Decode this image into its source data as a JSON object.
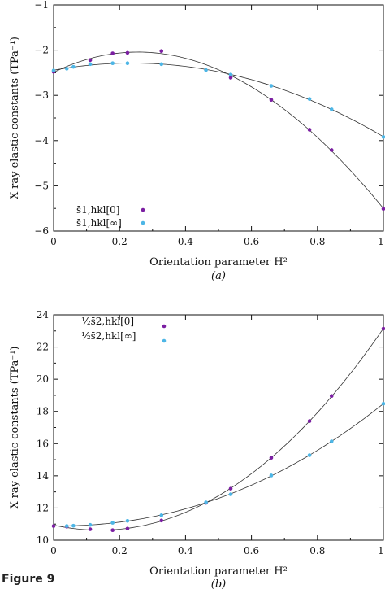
{
  "figure_label": "Figure 9",
  "chart_data": [
    {
      "type": "scatter",
      "caption": "(a)",
      "xlabel": "Orientation parameter H²",
      "ylabel": "X-ray elastic constants (TPa⁻¹)",
      "xlim": [
        0,
        1
      ],
      "ylim": [
        -6,
        -1
      ],
      "xticks": [
        "0",
        "0.2",
        "0.4",
        "0.6",
        "0.8",
        "1"
      ],
      "yticks": [
        "−6",
        "−5",
        "−4",
        "−3",
        "−2",
        "−1"
      ],
      "grid": false,
      "legend_position": "bottom-left",
      "series": [
        {
          "name": "s̄1,hkl[0]",
          "color": "#7b1fa2",
          "x": [
            0,
            0.111,
            0.179,
            0.224,
            0.327,
            0.537,
            0.66,
            0.776,
            0.843,
            1.0
          ],
          "y": [
            -2.48,
            -2.22,
            -2.07,
            -2.06,
            -2.02,
            -2.61,
            -3.1,
            -3.76,
            -4.21,
            -5.51
          ]
        },
        {
          "name": "s̄1,hkl[∞]",
          "color": "#4db6e6",
          "x": [
            0,
            0.04,
            0.06,
            0.111,
            0.179,
            0.224,
            0.327,
            0.462,
            0.537,
            0.66,
            0.776,
            0.843,
            1.0
          ],
          "y": [
            -2.45,
            -2.41,
            -2.37,
            -2.31,
            -2.29,
            -2.29,
            -2.31,
            -2.44,
            -2.54,
            -2.79,
            -3.08,
            -3.31,
            -3.92
          ]
        }
      ]
    },
    {
      "type": "scatter",
      "caption": "(b)",
      "xlabel": "Orientation parameter H²",
      "ylabel": "X-ray elastic constants (TPa⁻¹)",
      "xlim": [
        0,
        1
      ],
      "ylim": [
        10,
        24
      ],
      "xticks": [
        "0",
        "0.2",
        "0.4",
        "0.6",
        "0.8",
        "1"
      ],
      "yticks": [
        "10",
        "12",
        "14",
        "16",
        "18",
        "20",
        "22",
        "24"
      ],
      "grid": false,
      "legend_position": "top-left",
      "series": [
        {
          "name": "½s̄2,hkl[0]",
          "color": "#7b1fa2",
          "x": [
            0,
            0.04,
            0.111,
            0.179,
            0.224,
            0.327,
            0.462,
            0.537,
            0.66,
            0.776,
            0.843,
            1.0
          ],
          "y": [
            10.88,
            10.84,
            10.68,
            10.62,
            10.72,
            11.22,
            12.32,
            13.2,
            15.12,
            17.4,
            18.96,
            23.14
          ]
        },
        {
          "name": "½s̄2,hkl[∞]",
          "color": "#4db6e6",
          "x": [
            0.04,
            0.06,
            0.111,
            0.179,
            0.224,
            0.327,
            0.462,
            0.537,
            0.66,
            0.776,
            0.843,
            1.0
          ],
          "y": [
            10.88,
            10.9,
            10.95,
            11.08,
            11.2,
            11.55,
            12.35,
            12.85,
            14.02,
            15.28,
            16.14,
            18.48
          ]
        }
      ]
    }
  ]
}
